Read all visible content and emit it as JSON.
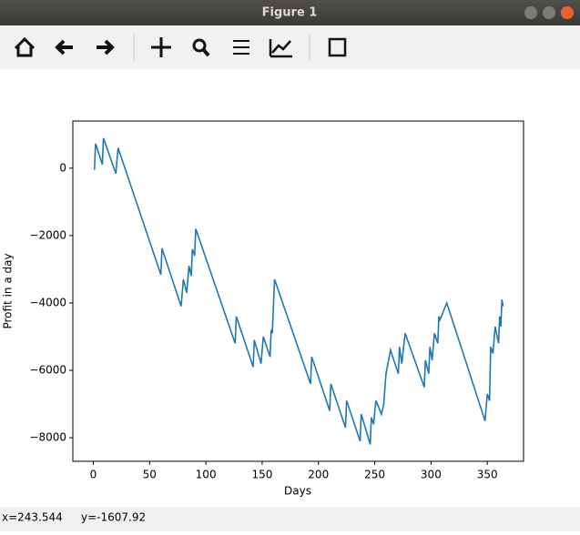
{
  "window": {
    "title": "Figure 1"
  },
  "status": {
    "x": "x=243.544",
    "y": "y=-1607.92"
  },
  "chart_data": {
    "type": "line",
    "xlabel": "Days",
    "ylabel": "Profit in a day",
    "series": [
      {
        "color": "#1f77b4",
        "x": [
          1,
          2,
          8,
          9,
          20,
          22,
          60,
          61,
          78,
          80,
          83,
          85,
          87,
          88,
          90,
          91,
          126,
          127,
          142,
          143,
          149,
          151,
          157,
          158,
          159,
          161,
          193,
          194,
          210,
          211,
          224,
          225,
          237,
          238,
          246,
          247,
          249,
          251,
          256,
          258,
          260,
          264,
          271,
          272,
          274,
          277,
          294,
          295,
          298,
          299,
          301,
          303,
          306,
          307,
          308,
          314,
          348,
          350,
          352,
          353,
          355,
          357,
          360,
          361,
          362,
          363,
          364
        ],
        "values": [
          -50,
          730,
          110,
          890,
          -160,
          600,
          -3160,
          -2380,
          -4100,
          -3300,
          -3700,
          -2900,
          -3200,
          -2400,
          -2600,
          -1800,
          -5200,
          -4400,
          -5900,
          -5100,
          -5800,
          -5000,
          -5600,
          -4800,
          -4900,
          -3300,
          -6400,
          -5600,
          -7200,
          -6400,
          -7700,
          -6900,
          -8100,
          -7300,
          -8200,
          -7400,
          -7600,
          -6900,
          -7300,
          -7000,
          -6100,
          -5400,
          -6100,
          -5300,
          -5800,
          -4900,
          -6500,
          -5700,
          -6100,
          -5300,
          -5700,
          -4900,
          -5200,
          -4400,
          -4500,
          -4000,
          -7500,
          -6700,
          -6900,
          -5300,
          -5500,
          -4700,
          -5200,
          -4400,
          -4700,
          -3900,
          -4100
        ]
      }
    ],
    "xlim": [
      -18.2,
      382.2
    ],
    "ylim": [
      -8700,
      1400
    ],
    "xticks": [
      0,
      50,
      100,
      150,
      200,
      250,
      300,
      350
    ],
    "yticks": [
      0,
      {
        "value": -2000,
        "label": "−2000"
      },
      {
        "value": -4000,
        "label": "−4000"
      },
      {
        "value": -6000,
        "label": "−6000"
      },
      {
        "value": -8000,
        "label": "−8000"
      }
    ]
  }
}
